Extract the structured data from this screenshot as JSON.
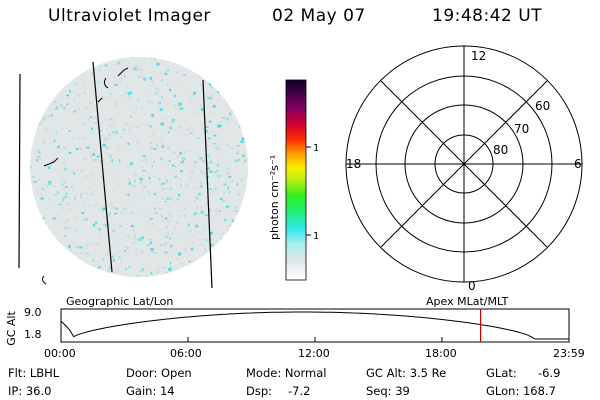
{
  "header": {
    "instrument": "Ultraviolet Imager",
    "date": "02 May 07",
    "time": "19:48:42 UT"
  },
  "colorbar": {
    "label": "photon cm⁻²s⁻¹",
    "ticks": [
      "100",
      "10"
    ]
  },
  "polar_plot": {
    "mlt_labels": {
      "top": "12",
      "left": "18",
      "right": "6",
      "bottom": "0"
    },
    "lat_labels": [
      "60",
      "70",
      "80"
    ]
  },
  "orbit_plot": {
    "left_title": "Geographic Lat/Lon",
    "right_title": "Apex MLat/MLT",
    "y_axis_label": "GC Alt",
    "y_ticks": [
      "9.0",
      "1.8"
    ],
    "x_ticks": [
      "00:00",
      "06:00",
      "12:00",
      "18:00",
      "23:59"
    ],
    "current_time_fraction": 0.826
  },
  "info": {
    "filter": "Flt: LBHL",
    "ip": "IP: 36.0",
    "door": "Door: Open",
    "gain": "Gain: 14",
    "mode": "Mode: Normal",
    "dsp_label": "Dsp:",
    "dsp_value": "-7.2",
    "gc_alt": "GC Alt: 3.5 Re",
    "seq": "Seq: 39",
    "glat_label": "GLat:",
    "glat_value": "-6.9",
    "glon": "GLon: 168.7"
  },
  "colors": {
    "image_speckle": "#40d8e0",
    "image_base": "#dfe7e7",
    "marker_line": "#d40000"
  }
}
